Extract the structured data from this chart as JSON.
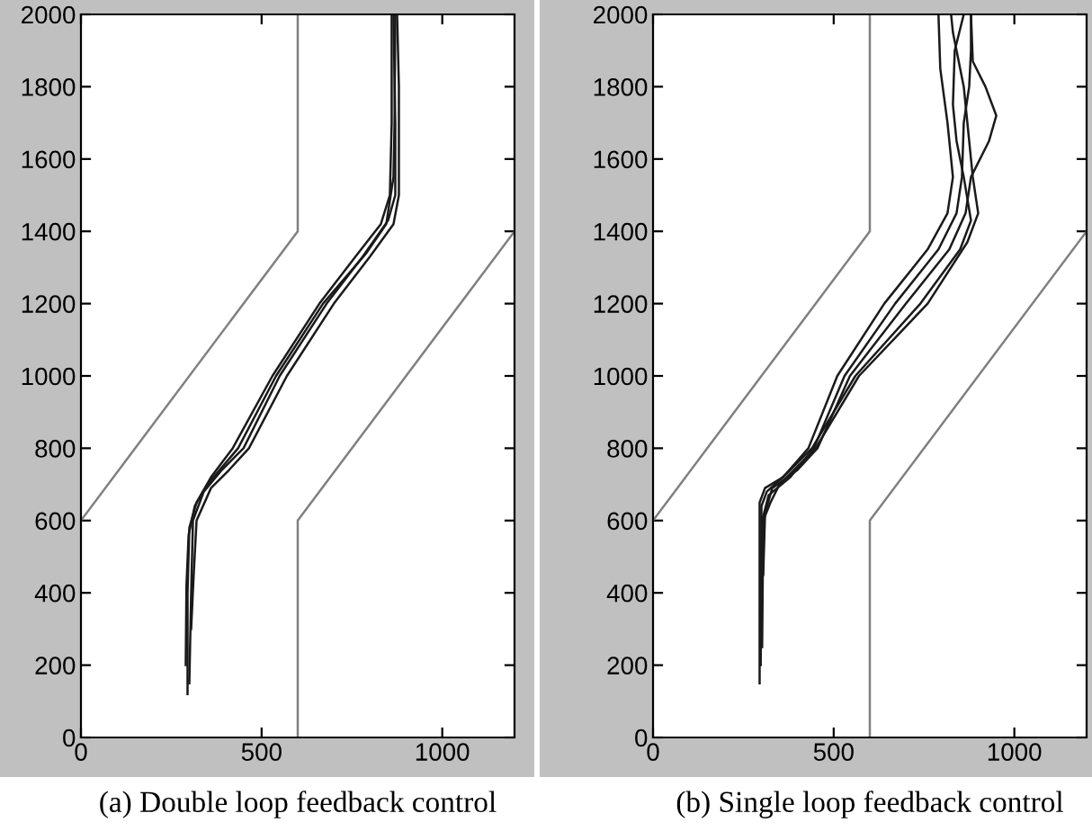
{
  "chart_data": [
    {
      "type": "line",
      "xlabel": "(a) Double loop feedback control",
      "xlim": [
        0,
        1200
      ],
      "ylim": [
        0,
        2000
      ],
      "xticks": [
        0,
        500,
        1000
      ],
      "yticks": [
        0,
        200,
        400,
        600,
        800,
        1000,
        1200,
        1400,
        1600,
        1800,
        2000
      ],
      "grid": false,
      "marker": "none",
      "line_style": "solid",
      "series": [
        {
          "color": "#808080",
          "x": [
            0,
            600,
            600
          ],
          "values": [
            600,
            1400,
            2000
          ]
        },
        {
          "color": "#808080",
          "x": [
            600,
            600,
            1200
          ],
          "values": [
            0,
            600,
            1400
          ]
        },
        {
          "color": "#1a1a1a",
          "x": [
            295,
            295,
            300,
            320,
            360,
            420,
            530,
            660,
            760,
            830,
            855,
            860,
            860
          ],
          "values": [
            120,
            400,
            580,
            650,
            720,
            800,
            1000,
            1200,
            1330,
            1420,
            1500,
            1700,
            2000
          ]
        },
        {
          "color": "#1a1a1a",
          "x": [
            300,
            305,
            310,
            340,
            390,
            450,
            550,
            680,
            780,
            850,
            870,
            870,
            865
          ],
          "values": [
            150,
            400,
            600,
            680,
            740,
            800,
            1000,
            1200,
            1330,
            1430,
            1500,
            1700,
            2000
          ]
        },
        {
          "color": "#1a1a1a",
          "x": [
            305,
            312,
            320,
            360,
            410,
            465,
            570,
            700,
            800,
            865,
            880,
            880,
            875
          ],
          "values": [
            300,
            450,
            600,
            690,
            740,
            800,
            1000,
            1200,
            1330,
            1420,
            1500,
            1800,
            2000
          ]
        },
        {
          "color": "#1a1a1a",
          "x": [
            290,
            292,
            298,
            315,
            350,
            435,
            540,
            670,
            790,
            845,
            865,
            868,
            870
          ],
          "values": [
            200,
            420,
            560,
            640,
            700,
            800,
            1000,
            1200,
            1340,
            1420,
            1550,
            1700,
            2000
          ]
        }
      ]
    },
    {
      "type": "line",
      "xlabel": "(b) Single loop feedback control",
      "xlim": [
        0,
        1200
      ],
      "ylim": [
        0,
        2000
      ],
      "xticks": [
        0,
        500,
        1000
      ],
      "yticks": [
        0,
        200,
        400,
        600,
        800,
        1000,
        1200,
        1400,
        1600,
        1800,
        2000
      ],
      "grid": false,
      "marker": "none",
      "line_style": "solid",
      "series": [
        {
          "color": "#808080",
          "x": [
            0,
            600,
            600
          ],
          "values": [
            600,
            1400,
            2000
          ]
        },
        {
          "color": "#808080",
          "x": [
            600,
            600,
            1200
          ],
          "values": [
            0,
            600,
            1400
          ]
        },
        {
          "color": "#1a1a1a",
          "x": [
            295,
            295,
            310,
            360,
            430,
            510,
            640,
            760,
            815,
            830,
            815,
            795,
            790
          ],
          "values": [
            150,
            650,
            690,
            720,
            800,
            1000,
            1200,
            1350,
            1450,
            1550,
            1700,
            1850,
            2000
          ]
        },
        {
          "color": "#1a1a1a",
          "x": [
            300,
            302,
            320,
            380,
            445,
            530,
            670,
            790,
            840,
            855,
            860,
            875,
            880,
            880
          ],
          "values": [
            300,
            600,
            670,
            720,
            800,
            1000,
            1200,
            1350,
            1450,
            1550,
            1700,
            1800,
            1900,
            2000
          ]
        },
        {
          "color": "#1a1a1a",
          "x": [
            305,
            310,
            330,
            400,
            455,
            545,
            700,
            820,
            865,
            880,
            930,
            950,
            920,
            885,
            880
          ],
          "values": [
            450,
            620,
            690,
            740,
            800,
            1000,
            1200,
            1350,
            1450,
            1550,
            1650,
            1720,
            1800,
            1870,
            2000
          ]
        },
        {
          "color": "#1a1a1a",
          "x": [
            298,
            300,
            315,
            370,
            440,
            560,
            740,
            850,
            880,
            860,
            840,
            830,
            835,
            860
          ],
          "values": [
            200,
            640,
            680,
            730,
            800,
            1000,
            1200,
            1350,
            1430,
            1550,
            1650,
            1750,
            1900,
            2000
          ]
        },
        {
          "color": "#1a1a1a",
          "x": [
            302,
            305,
            325,
            350,
            450,
            570,
            760,
            870,
            900,
            885,
            870,
            860,
            830,
            825
          ],
          "values": [
            250,
            600,
            650,
            700,
            800,
            1000,
            1200,
            1370,
            1450,
            1550,
            1700,
            1800,
            1950,
            2000
          ]
        }
      ]
    }
  ]
}
